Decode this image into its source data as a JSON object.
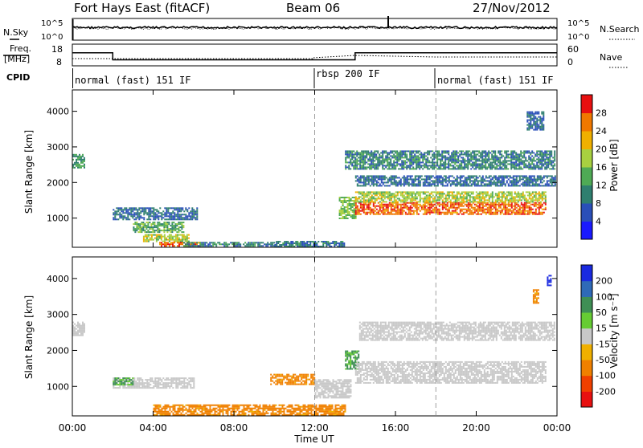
{
  "header": {
    "station": "Fort Hays East (fitACF)",
    "beam": "Beam 06",
    "date": "27/Nov/2012"
  },
  "noise_panel": {
    "left_label": "N.Sky",
    "left_ticks": [
      "10^5",
      "10^0"
    ],
    "right_label": "N.Search",
    "right_ticks": [
      "10^5",
      "10^0"
    ]
  },
  "freq_panel": {
    "left_label_line1": "Freq.",
    "left_label_line2": "[MHz]",
    "left_ticks": [
      "18",
      "8"
    ],
    "right_label": "Nave",
    "right_ticks": [
      "60",
      "0"
    ]
  },
  "cpid_panel": {
    "label": "CPID",
    "modes": [
      {
        "name": "normal (fast) 151 IF",
        "start_hour": 0
      },
      {
        "name": "rbsp 200 IF",
        "start_hour": 12
      },
      {
        "name": "normal (fast) 151 IF",
        "start_hour": 18
      }
    ]
  },
  "x_axis": {
    "label": "Time UT",
    "ticks": [
      "00:00",
      "04:00",
      "08:00",
      "12:00",
      "16:00",
      "20:00",
      "00:00"
    ],
    "range_hours": [
      0,
      24
    ]
  },
  "power_panel": {
    "ylabel": "Slant Range [km]",
    "yticks": [
      "1000",
      "2000",
      "3000",
      "4000"
    ],
    "yrange_km": [
      180,
      4600
    ],
    "colorbar_label": "Power [dB]",
    "colorbar_ticks": [
      "4",
      "8",
      "12",
      "16",
      "20",
      "24",
      "28"
    ],
    "colorbar_colors": [
      "#1a1aff",
      "#2a4fb8",
      "#2f7f6f",
      "#4faa55",
      "#a8d040",
      "#f0b000",
      "#f07800",
      "#e81010"
    ]
  },
  "velocity_panel": {
    "ylabel": "Slant Range [km]",
    "yticks": [
      "1000",
      "2000",
      "3000",
      "4000"
    ],
    "yrange_km": [
      180,
      4600
    ],
    "colorbar_label": "Velocity [m s⁻¹]",
    "colorbar_ticks": [
      "200",
      "100",
      "50",
      "15",
      "-15",
      "-50",
      "-100",
      "-200"
    ],
    "colorbar_colors": [
      "#1a2ae0",
      "#2f6ab8",
      "#3f8f55",
      "#66cc33",
      "#c8c8c8",
      "#f0b000",
      "#f08000",
      "#f04000",
      "#e81010"
    ]
  },
  "chart_data": {
    "type": "heatmap",
    "x_unit": "hours UT",
    "y_unit": "km",
    "frequency_mhz": {
      "x": [
        0,
        2,
        2,
        11.9,
        11.9,
        14,
        14,
        24
      ],
      "values": [
        14.5,
        14.5,
        10.5,
        10.5,
        10.5,
        10.5,
        14.5,
        14.5
      ]
    },
    "power_regions": [
      {
        "t0": 0.0,
        "t1": 0.6,
        "r0": 2400,
        "r1": 2800,
        "level_db": 12
      },
      {
        "t0": 2.0,
        "t1": 6.2,
        "r0": 950,
        "r1": 1300,
        "level_db": 8
      },
      {
        "t0": 3.0,
        "t1": 5.5,
        "r0": 600,
        "r1": 900,
        "level_db": 14
      },
      {
        "t0": 3.5,
        "t1": 5.8,
        "r0": 350,
        "r1": 550,
        "level_db": 18
      },
      {
        "t0": 4.3,
        "t1": 6.3,
        "r0": 200,
        "r1": 330,
        "level_db": 27
      },
      {
        "t0": 5.5,
        "t1": 10.0,
        "r0": 200,
        "r1": 330,
        "level_db": 10
      },
      {
        "t0": 10.0,
        "t1": 13.5,
        "r0": 200,
        "r1": 360,
        "level_db": 9
      },
      {
        "t0": 13.2,
        "t1": 14.0,
        "r0": 1000,
        "r1": 1600,
        "level_db": 16
      },
      {
        "t0": 14.0,
        "t1": 23.4,
        "r0": 1100,
        "r1": 1450,
        "level_db": 27
      },
      {
        "t0": 14.0,
        "t1": 23.4,
        "r0": 1450,
        "r1": 1750,
        "level_db": 18
      },
      {
        "t0": 13.5,
        "t1": 23.9,
        "r0": 2400,
        "r1": 2900,
        "level_db": 10
      },
      {
        "t0": 14.0,
        "t1": 23.9,
        "r0": 1900,
        "r1": 2200,
        "level_db": 8
      },
      {
        "t0": 22.5,
        "t1": 23.3,
        "r0": 3500,
        "r1": 4000,
        "level_db": 8
      }
    ],
    "velocity_regions": [
      {
        "t0": 0.0,
        "t1": 0.6,
        "r0": 2400,
        "r1": 2800,
        "level_ms": 0
      },
      {
        "t0": 2.0,
        "t1": 6.0,
        "r0": 950,
        "r1": 1250,
        "level_ms": 0
      },
      {
        "t0": 2.0,
        "t1": 3.0,
        "r0": 1050,
        "r1": 1250,
        "level_ms": 35
      },
      {
        "t0": 4.0,
        "t1": 13.5,
        "r0": 200,
        "r1": 500,
        "level_ms": -40
      },
      {
        "t0": 9.8,
        "t1": 12.0,
        "r0": 1050,
        "r1": 1350,
        "level_ms": -40
      },
      {
        "t0": 12.0,
        "t1": 13.8,
        "r0": 700,
        "r1": 1200,
        "level_ms": 0
      },
      {
        "t0": 13.5,
        "t1": 14.2,
        "r0": 1500,
        "r1": 2000,
        "level_ms": 35
      },
      {
        "t0": 14.0,
        "t1": 23.4,
        "r0": 1100,
        "r1": 1700,
        "level_ms": 0
      },
      {
        "t0": 14.2,
        "t1": 23.9,
        "r0": 2300,
        "r1": 2800,
        "level_ms": 0
      },
      {
        "t0": 22.8,
        "t1": 23.1,
        "r0": 3300,
        "r1": 3700,
        "level_ms": -40
      },
      {
        "t0": 23.5,
        "t1": 23.7,
        "r0": 3800,
        "r1": 4100,
        "level_ms": 220
      }
    ]
  }
}
